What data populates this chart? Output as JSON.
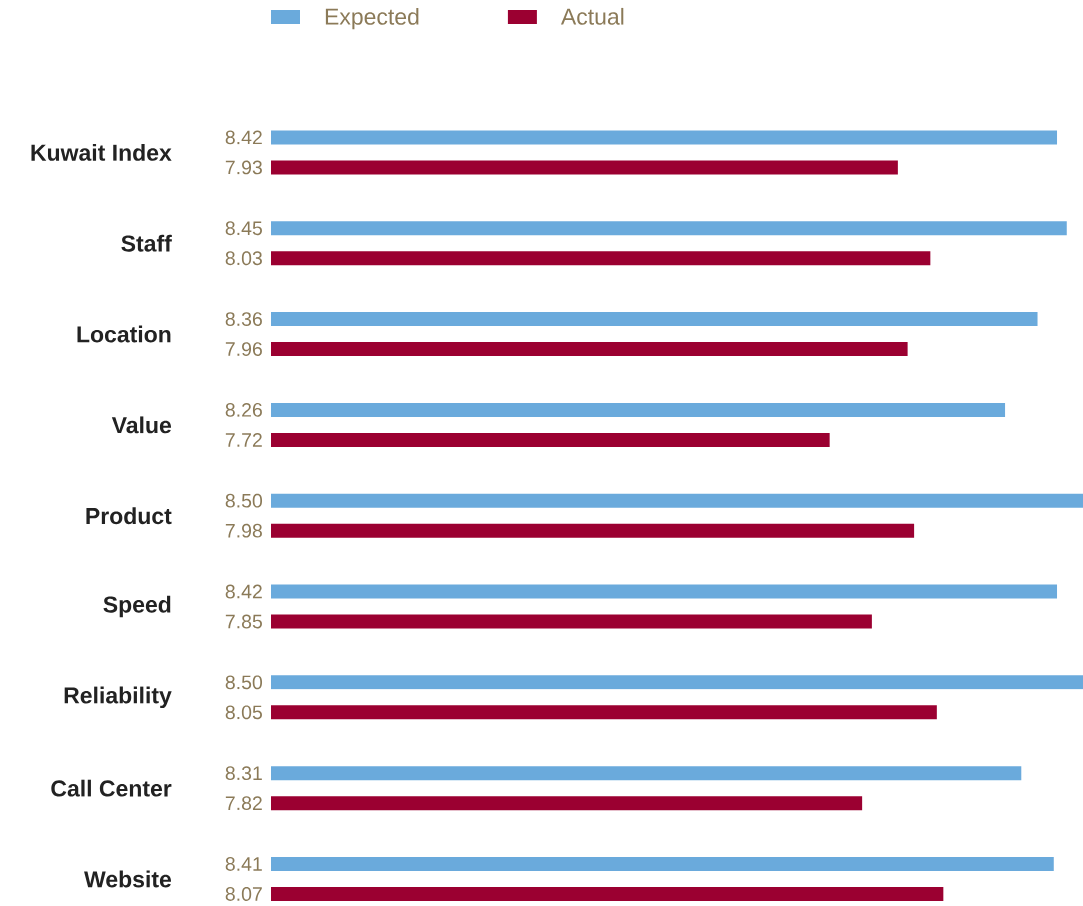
{
  "chart_data": {
    "type": "bar",
    "orientation": "horizontal",
    "categories": [
      "Kuwait Index",
      "Staff",
      "Location",
      "Value",
      "Product",
      "Speed",
      "Reliability",
      "Call Center",
      "Website"
    ],
    "series": [
      {
        "name": "Expected",
        "color": "#6aaadc",
        "values": [
          8.42,
          8.45,
          8.36,
          8.26,
          8.5,
          8.42,
          8.5,
          8.31,
          8.41
        ],
        "value_labels": [
          "8.42",
          "8.45",
          "8.36",
          "8.26",
          "8.50",
          "8.42",
          "8.50",
          "8.31",
          "8.41"
        ]
      },
      {
        "name": "Actual",
        "color": "#9b0031",
        "values": [
          7.93,
          8.03,
          7.96,
          7.72,
          7.98,
          7.85,
          8.05,
          7.82,
          8.07
        ],
        "value_labels": [
          "7.93",
          "8.03",
          "7.96",
          "7.72",
          "7.98",
          "7.85",
          "8.05",
          "7.82",
          "8.07"
        ]
      }
    ],
    "xlim": [
      6,
      8.5
    ],
    "legend": "top"
  }
}
